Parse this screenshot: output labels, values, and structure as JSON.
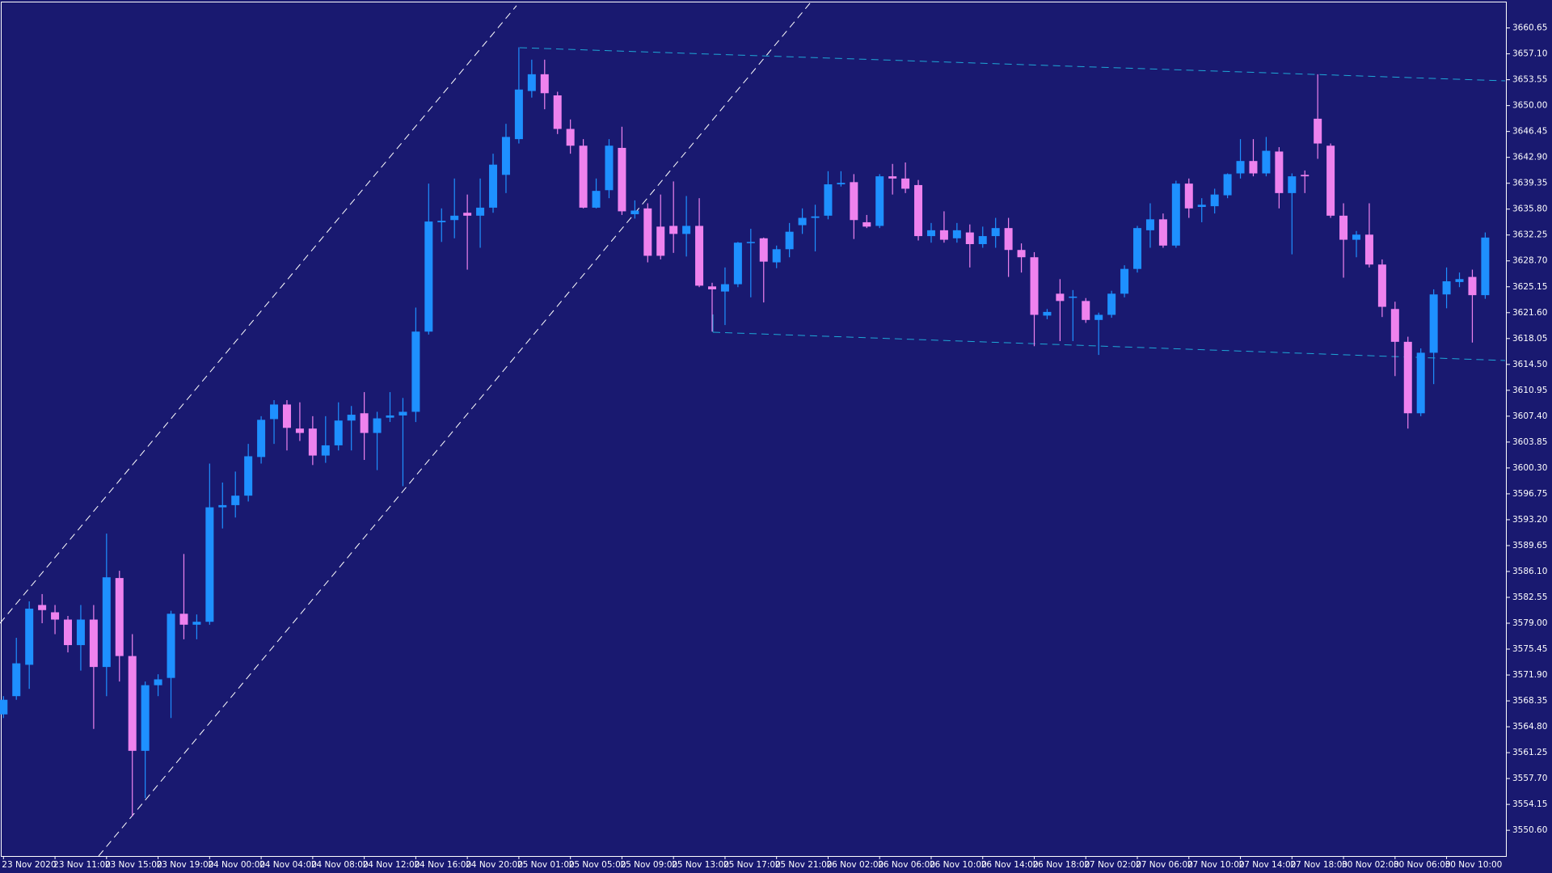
{
  "chart_data": {
    "type": "candlestick",
    "up_color": "#1e90ff",
    "down_color": "#ee82ee",
    "doji_color": "#ffffff",
    "categories": [
      "23 Nov 2020",
      null,
      null,
      null,
      "23 Nov 11:00",
      null,
      null,
      null,
      "23 Nov 15:00",
      null,
      null,
      null,
      "23 Nov 19:00",
      null,
      null,
      null,
      "24 Nov 00:00",
      null,
      null,
      null,
      "24 Nov 04:00",
      null,
      null,
      null,
      "24 Nov 08:00",
      null,
      null,
      null,
      "24 Nov 12:00",
      null,
      null,
      null,
      "24 Nov 16:00",
      null,
      null,
      null,
      "24 Nov 20:00",
      null,
      null,
      null,
      "25 Nov 01:00",
      null,
      null,
      null,
      "25 Nov 05:00",
      null,
      null,
      null,
      "25 Nov 09:00",
      null,
      null,
      null,
      "25 Nov 13:00",
      null,
      null,
      null,
      "25 Nov 17:00",
      null,
      null,
      null,
      "25 Nov 21:00",
      null,
      null,
      null,
      "26 Nov 02:00",
      null,
      null,
      null,
      "26 Nov 06:00",
      null,
      null,
      null,
      "26 Nov 10:00",
      null,
      null,
      null,
      "26 Nov 14:00",
      null,
      null,
      null,
      "26 Nov 18:00",
      null,
      null,
      null,
      "27 Nov 02:00",
      null,
      null,
      null,
      "27 Nov 06:00",
      null,
      null,
      null,
      "27 Nov 10:00",
      null,
      null,
      null,
      "27 Nov 14:00",
      null,
      null,
      null,
      "27 Nov 18:00",
      null,
      null,
      null,
      "30 Nov 02:00",
      null,
      null,
      null,
      "30 Nov 06:00",
      null,
      null,
      null,
      "30 Nov 10:00",
      null,
      null,
      null
    ],
    "open": [
      3566.5,
      3569,
      3573.3,
      3581.5,
      3580.5,
      3579.5,
      3576,
      3579.5,
      3573,
      3585.2,
      3574.5,
      3561.5,
      3570.5,
      3571.5,
      3580.3,
      3578.8,
      3579.2,
      3594.9,
      3595.2,
      3596.5,
      3601.8,
      3607,
      3609,
      3605.7,
      3605.7,
      3602,
      3603.4,
      3606.8,
      3607.8,
      3605.1,
      3607.2,
      3607.5,
      3608,
      3619,
      3634,
      3634.3,
      3635.3,
      3634.9,
      3636,
      3640.5,
      3645.4,
      3652,
      3654.3,
      3651.4,
      3646.8,
      3644.5,
      3636,
      3638.4,
      3644.2,
      3635.1,
      3635.9,
      3633.4,
      3633.5,
      3632.4,
      3633.5,
      3625.2,
      3624.5,
      3625.5,
      3631.2,
      3631.8,
      3628.5,
      3630.3,
      3633.6,
      3634.6,
      3634.9,
      3639.2,
      3639.5,
      3634,
      3633.5,
      3640.3,
      3640,
      3639.1,
      3632.1,
      3632.9,
      3631.8,
      3632.6,
      3631,
      3632.1,
      3633.2,
      3630.2,
      3629.2,
      3621.2,
      3624.2,
      3623.7,
      3623.2,
      3620.6,
      3621.3,
      3624.2,
      3627.6,
      3632.9,
      3634.4,
      3630.8,
      3639.3,
      3636.1,
      3636.2,
      3637.7,
      3640.7,
      3642.4,
      3640.7,
      3643.7,
      3638,
      3640.5,
      3648.2,
      3644.5,
      3634.9,
      3631.6,
      3632.3,
      3628.2,
      3622.1,
      3617.6,
      3607.8,
      3616.1,
      3624.1,
      3625.8,
      3626.5,
      3624
    ],
    "high": [
      3569,
      3577,
      3582,
      3583,
      3581.5,
      3580,
      3581.5,
      3581.5,
      3591.3,
      3586.2,
      3577.5,
      3571,
      3572,
      3580.7,
      3588.5,
      3580.2,
      3600.9,
      3598.3,
      3599.8,
      3603.6,
      3607.4,
      3609.6,
      3609.6,
      3609.3,
      3607.4,
      3607.4,
      3609.3,
      3608.8,
      3610.7,
      3608,
      3610.7,
      3609.9,
      3622.3,
      3639.3,
      3635.9,
      3640,
      3637.8,
      3640,
      3643.4,
      3647.5,
      3658,
      3656.3,
      3656.3,
      3651.9,
      3648.1,
      3645.4,
      3640,
      3645.4,
      3647.1,
      3637,
      3636.6,
      3637.8,
      3639.6,
      3637.6,
      3637.3,
      3625.7,
      3627.8,
      3631.3,
      3633.1,
      3631.9,
      3630.8,
      3633.9,
      3635.9,
      3636.4,
      3641,
      3641,
      3640.6,
      3635,
      3640.6,
      3642,
      3642.2,
      3639.8,
      3633.9,
      3635.5,
      3633.9,
      3633.7,
      3633.4,
      3634.6,
      3634.6,
      3631.1,
      3629.9,
      3622.1,
      3626.2,
      3624.7,
      3623.6,
      3621.6,
      3624.6,
      3628.1,
      3633.5,
      3636.6,
      3635.2,
      3639.7,
      3640,
      3637.3,
      3638.6,
      3640.7,
      3645.4,
      3645.4,
      3645.7,
      3644.3,
      3640.7,
      3641.1,
      3654.3,
      3644.8,
      3636.6,
      3632.8,
      3636.6,
      3628.9,
      3623.1,
      3618.3,
      3616.7,
      3624.8,
      3627.8,
      3627.1,
      3627.5,
      3632.6
    ],
    "low": [
      3566,
      3568.5,
      3570,
      3579,
      3577.5,
      3575,
      3572.5,
      3564.5,
      3569,
      3571,
      3552.5,
      3555,
      3569,
      3566,
      3576.8,
      3576.8,
      3578.8,
      3592,
      3593.5,
      3595.7,
      3600.9,
      3603.6,
      3602.7,
      3604,
      3600.7,
      3601,
      3602.7,
      3602.7,
      3601.4,
      3600,
      3606.6,
      3597.8,
      3606.6,
      3618.6,
      3631.3,
      3631.8,
      3627.5,
      3630.5,
      3635.3,
      3638,
      3644.8,
      3651.1,
      3649.5,
      3646.1,
      3643.4,
      3635.9,
      3635.9,
      3637.3,
      3635,
      3634.5,
      3628.5,
      3628.9,
      3629.8,
      3629.3,
      3625.1,
      3619,
      3619.9,
      3625.1,
      3623.7,
      3623,
      3627.7,
      3629.2,
      3632.4,
      3630,
      3634.4,
      3638.9,
      3631.7,
      3633.2,
      3633.2,
      3637.8,
      3638,
      3631.5,
      3631.2,
      3631.2,
      3631.2,
      3627.8,
      3630.5,
      3630.5,
      3626.5,
      3627.1,
      3617,
      3620.7,
      3617.7,
      3617.7,
      3620.2,
      3615.8,
      3620.9,
      3623.7,
      3627.1,
      3630.5,
      3630.5,
      3630.5,
      3634.6,
      3634,
      3635.2,
      3637.3,
      3640,
      3640.3,
      3640.3,
      3635.9,
      3629.6,
      3638,
      3642.7,
      3634.6,
      3626.4,
      3629.2,
      3627.8,
      3621,
      3612.9,
      3605.7,
      3607.4,
      3611.8,
      3622.2,
      3625.1,
      3617.5,
      3623.5
    ],
    "close": [
      3568.5,
      3573.5,
      3581,
      3580.8,
      3579.5,
      3576,
      3579.5,
      3573,
      3585.3,
      3574.5,
      3561.5,
      3570.5,
      3571.3,
      3580.3,
      3578.8,
      3579.2,
      3594.9,
      3595.2,
      3596.5,
      3601.9,
      3606.9,
      3609,
      3605.8,
      3605.1,
      3602,
      3603.4,
      3606.8,
      3607.6,
      3605.1,
      3607.1,
      3607.5,
      3608,
      3619,
      3634.1,
      3634.2,
      3634.9,
      3634.9,
      3636,
      3641.9,
      3645.7,
      3652.2,
      3654.3,
      3651.7,
      3646.8,
      3644.5,
      3636,
      3638.3,
      3644.5,
      3635.5,
      3635.6,
      3629.4,
      3629.4,
      3632.4,
      3633.5,
      3625.3,
      3624.8,
      3625.5,
      3631.2,
      3631.3,
      3628.6,
      3630.3,
      3632.7,
      3634.6,
      3634.8,
      3639.2,
      3639.4,
      3634.3,
      3633.4,
      3640.3,
      3640,
      3638.6,
      3632.1,
      3632.9,
      3631.6,
      3632.9,
      3631,
      3632.1,
      3633.2,
      3630.2,
      3629.2,
      3621.3,
      3621.7,
      3623.2,
      3623.8,
      3620.6,
      3621.3,
      3624.2,
      3627.6,
      3633.2,
      3634.4,
      3630.8,
      3639.3,
      3635.9,
      3636.4,
      3637.8,
      3640.6,
      3642.4,
      3640.7,
      3643.8,
      3638,
      3640.3,
      3640.3,
      3644.8,
      3634.9,
      3631.6,
      3632.3,
      3628.2,
      3622.4,
      3617.6,
      3607.8,
      3616.1,
      3624.1,
      3625.9,
      3626.2,
      3624,
      3631.9
    ],
    "ylim": [
      3547.07,
      3664.04
    ],
    "yticks": [
      3660.65,
      {
        "value": 3657.1,
        "label": "3657.10"
      },
      3653.55,
      {
        "value": 3650,
        "label": "3650.00"
      },
      3646.45,
      {
        "value": 3642.9,
        "label": "3642.90"
      },
      3639.35,
      {
        "value": 3635.8,
        "label": "3635.80"
      },
      3632.25,
      {
        "value": 3628.7,
        "label": "3628.70"
      },
      3625.15,
      {
        "value": 3621.6,
        "label": "3621.60"
      },
      3618.05,
      {
        "value": 3614.5,
        "label": "3614.50"
      },
      3610.95,
      {
        "value": 3607.4,
        "label": "3607.40"
      },
      3603.85,
      {
        "value": 3600.3,
        "label": "3600.30"
      },
      3596.75,
      {
        "value": 3593.2,
        "label": "3593.20"
      },
      3589.65,
      {
        "value": 3586.1,
        "label": "3586.10"
      },
      3582.55,
      {
        "value": 3579,
        "label": "3579.00"
      },
      3575.45,
      {
        "value": 3571.9,
        "label": "3571.90"
      },
      3568.35,
      {
        "value": 3564.8,
        "label": "3564.80"
      },
      3561.25,
      {
        "value": 3557.7,
        "label": "3557.70"
      },
      3554.15,
      {
        "value": 3550.6,
        "label": "3550.60"
      }
    ],
    "grid": false
  }
}
